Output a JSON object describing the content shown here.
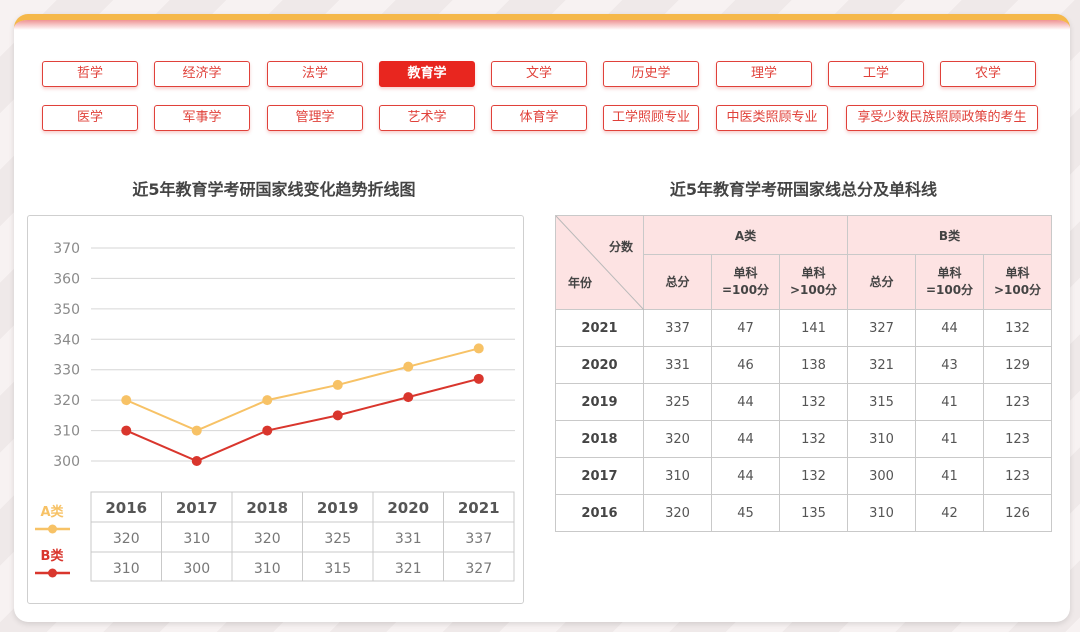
{
  "subjects": {
    "row1": [
      "哲学",
      "经济学",
      "法学",
      "教育学",
      "文学",
      "历史学",
      "理学",
      "工学",
      "农学"
    ],
    "row2": [
      "医学",
      "军事学",
      "管理学",
      "艺术学",
      "体育学",
      "工学照顾专业",
      "中医类照顾专业",
      "享受少数民族照顾政策的考生"
    ],
    "active": "教育学"
  },
  "left_title": "近5年教育学考研国家线变化趋势折线图",
  "right_title": "近5年教育学考研国家线总分及单科线",
  "colors": {
    "a_line": "#f7c266",
    "b_line": "#d9362d",
    "accent": "#e8261f",
    "header_bg": "#fde3e3"
  },
  "chart_data": {
    "type": "line",
    "categories": [
      "2016",
      "2017",
      "2018",
      "2019",
      "2020",
      "2021"
    ],
    "series": [
      {
        "name": "A类",
        "values": [
          320,
          310,
          320,
          325,
          331,
          337
        ],
        "color": "#f7c266"
      },
      {
        "name": "B类",
        "values": [
          310,
          300,
          310,
          315,
          321,
          327
        ],
        "color": "#d9362d"
      }
    ],
    "yticks": [
      370,
      360,
      350,
      340,
      330,
      320,
      310,
      300
    ],
    "ylim": [
      300,
      370
    ],
    "grid": true,
    "legend": "bottom-left"
  },
  "table": {
    "corner_top": "分数",
    "corner_bottom": "年份",
    "group_a": "A类",
    "group_b": "B类",
    "sub_headers": [
      "总分",
      "单科\n=100分",
      "单科\n>100分",
      "总分",
      "单科\n=100分",
      "单科\n>100分"
    ],
    "rows": [
      {
        "year": "2021",
        "cells": [
          "337",
          "47",
          "141",
          "327",
          "44",
          "132"
        ]
      },
      {
        "year": "2020",
        "cells": [
          "331",
          "46",
          "138",
          "321",
          "43",
          "129"
        ]
      },
      {
        "year": "2019",
        "cells": [
          "325",
          "44",
          "132",
          "315",
          "41",
          "123"
        ]
      },
      {
        "year": "2018",
        "cells": [
          "320",
          "44",
          "132",
          "310",
          "41",
          "123"
        ]
      },
      {
        "year": "2017",
        "cells": [
          "310",
          "44",
          "132",
          "300",
          "41",
          "123"
        ]
      },
      {
        "year": "2016",
        "cells": [
          "320",
          "45",
          "135",
          "310",
          "42",
          "126"
        ]
      }
    ]
  }
}
